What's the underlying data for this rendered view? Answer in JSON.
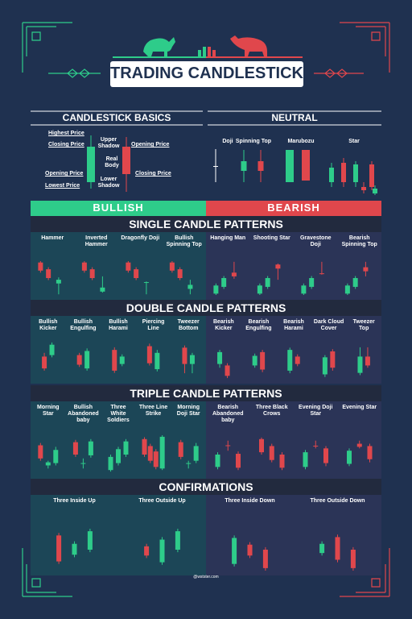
{
  "header": {
    "title": "TRADING CANDLESTICK"
  },
  "basics": {
    "title": "CANDLESTICK BASICS",
    "labels": [
      "Highest Price",
      "Closing Price",
      "Opening Price",
      "Lowest Price",
      "Upper Shadow",
      "Real Body",
      "Lower Shadow",
      "Opening Price",
      "Closing Price"
    ]
  },
  "neutral": {
    "title": "NEUTRAL",
    "items": [
      "Doji",
      "Spinning Top",
      "Marubozu",
      "Star"
    ]
  },
  "sides": {
    "bullish": "BULLISH",
    "bearish": "BEARISH"
  },
  "sections": [
    {
      "title": "SINGLE CANDLE PATTERNS",
      "bullish": [
        "Hammer",
        "Inverted Hammer",
        "Dragonfly Doji",
        "Bullish Spinning Top"
      ],
      "bearish": [
        "Hanging Man",
        "Shooting Star",
        "Gravestone Doji",
        "Bearish Spinning Top"
      ]
    },
    {
      "title": "DOUBLE CANDLE PATTERNS",
      "bullish": [
        "Bullish Kicker",
        "Bullish Engulfing",
        "Bullish Harami",
        "Piercing Line",
        "Tweezer Bottom"
      ],
      "bearish": [
        "Bearish Kicker",
        "Bearish Engulfing",
        "Bearish Harami",
        "Dark Cloud Cover",
        "Tweezer Top"
      ]
    },
    {
      "title": "TRIPLE CANDLE PATTERNS",
      "bullish": [
        "Morning Star",
        "Bullish Abandoned baby",
        "Three White Soldiers",
        "Three Line Strike",
        "Morning Doji Star"
      ],
      "bearish": [
        "Bearish Abandoned baby",
        "Three Black Crows",
        "Evening Doji Star",
        "Evening Star"
      ]
    },
    {
      "title": "CONFIRMATIONS",
      "bullish": [
        "Three Inside Up",
        "Three Outside Up"
      ],
      "bearish": [
        "Three Inside Down",
        "Three Outside Down"
      ]
    }
  ],
  "footer": "@wstster.com"
}
